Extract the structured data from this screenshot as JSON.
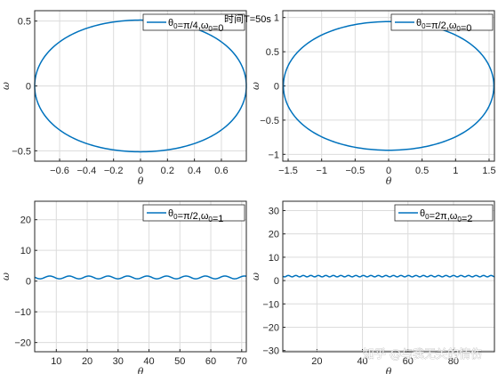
{
  "figure_title": "时间T=50s",
  "watermark": "知乎 @与我无关的情伤",
  "colors": {
    "line": "#0072bd",
    "grid": "#dcdcdc",
    "axis": "#262626",
    "background": "#ffffff"
  },
  "chart_data": [
    {
      "type": "line",
      "legend": "θ0=π/4,ω0=0",
      "xlabel": "θ",
      "ylabel": "ω",
      "xlim": [
        -0.785,
        0.785
      ],
      "ylim": [
        -0.58,
        0.58
      ],
      "xticks": [
        -0.6,
        -0.4,
        -0.2,
        0,
        0.2,
        0.4,
        0.6
      ],
      "yticks": [
        -0.5,
        0,
        0.5
      ],
      "grid": true,
      "legend_position": "top-right",
      "series": [
        {
          "kind": "ellipse",
          "theta_amplitude": 0.785,
          "omega_amplitude": 0.54
        }
      ]
    },
    {
      "type": "line",
      "legend": "θ0=π/2,ω0=0",
      "xlabel": "θ",
      "ylabel": "ω",
      "xlim": [
        -1.58,
        1.58
      ],
      "ylim": [
        -1.1,
        1.1
      ],
      "xticks": [
        -1.5,
        -1,
        -0.5,
        0,
        0.5,
        1,
        1.5
      ],
      "yticks": [
        -1,
        -0.5,
        0,
        0.5,
        1
      ],
      "grid": true,
      "legend_position": "top-right",
      "series": [
        {
          "kind": "ellipse",
          "theta_amplitude": 1.571,
          "omega_amplitude": 1.0
        }
      ]
    },
    {
      "type": "line",
      "legend": "θ0=π/2,ω0=1",
      "xlabel": "θ",
      "ylabel": "ω",
      "xlim": [
        3,
        71.5
      ],
      "ylim": [
        -23,
        26
      ],
      "xticks": [
        10,
        20,
        30,
        40,
        50,
        60,
        70
      ],
      "yticks": [
        -20,
        -10,
        0,
        10,
        20
      ],
      "grid": true,
      "legend_position": "top-right",
      "series": [
        {
          "kind": "wave",
          "x": [
            3,
            71.5
          ],
          "mean": 1.2,
          "amplitude": 0.45,
          "period": 6.3
        }
      ]
    },
    {
      "type": "line",
      "legend": "θ0=2π,ω0=2",
      "xlabel": "θ",
      "ylabel": "ω",
      "xlim": [
        5,
        98
      ],
      "ylim": [
        -30.5,
        34
      ],
      "xticks": [
        20,
        40,
        60,
        80
      ],
      "yticks": [
        -30,
        -20,
        -10,
        0,
        10,
        20,
        30
      ],
      "grid": true,
      "legend_position": "top-right",
      "series": [
        {
          "kind": "wave",
          "x": [
            5,
            98
          ],
          "mean": 1.9,
          "amplitude": 0.3,
          "period": 3.3
        }
      ]
    }
  ]
}
